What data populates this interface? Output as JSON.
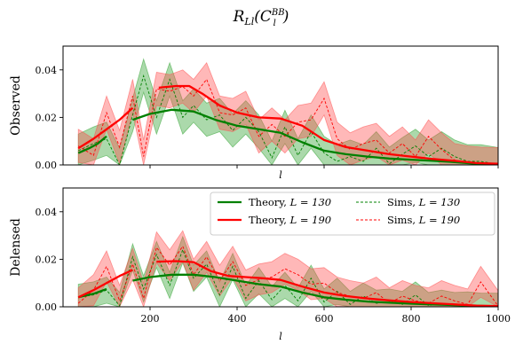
{
  "chart_data": {
    "type": "line",
    "title": "R_{Ll}(C_l^{BB})",
    "title_main": "R",
    "title_sub": "Ll",
    "title_func": "(C",
    "title_l": "l",
    "title_sup": "BB",
    "title_close": ")",
    "xlim": [
      0,
      1000
    ],
    "ylim": [
      0,
      0.05
    ],
    "xticks": [
      "200",
      "400",
      "600",
      "800",
      "1000"
    ],
    "yticks": [
      "0.00",
      "0.02",
      "0.04"
    ],
    "colors": {
      "green": "#008000",
      "red": "#ff0000",
      "green_fill": "#2ca02c",
      "red_fill": "#ff4d4d"
    },
    "legend": {
      "placement": "top-right",
      "entries": [
        {
          "label_pre": "Theory, ",
          "label_math": "L = 130",
          "style": "solid",
          "color": "green"
        },
        {
          "label_pre": "Theory, ",
          "label_math": "L = 190",
          "style": "solid",
          "color": "red"
        },
        {
          "label_pre": "Sims, ",
          "label_math": "L = 130",
          "style": "dashed",
          "color": "green"
        },
        {
          "label_pre": "Sims, ",
          "label_math": "L = 190",
          "style": "dashed",
          "color": "red"
        }
      ]
    },
    "panels": [
      {
        "ylabel": "Observed",
        "xlabel": "l",
        "theory_130": [
          [
            [
              35,
              0.005
            ],
            [
              60,
              0.007
            ],
            [
              80,
              0.009
            ],
            [
              100,
              0.012
            ]
          ],
          [
            [
              160,
              0.019
            ],
            [
              200,
              0.0215
            ],
            [
              250,
              0.0232
            ],
            [
              300,
              0.0225
            ],
            [
              350,
              0.019
            ],
            [
              400,
              0.0165
            ],
            [
              450,
              0.015
            ],
            [
              500,
              0.0135
            ],
            [
              550,
              0.0095
            ],
            [
              600,
              0.006
            ],
            [
              650,
              0.0045
            ],
            [
              700,
              0.0035
            ],
            [
              750,
              0.0027
            ],
            [
              800,
              0.0022
            ],
            [
              850,
              0.0017
            ],
            [
              900,
              0.0012
            ],
            [
              950,
              0.0005
            ],
            [
              1000,
              0.0003
            ]
          ]
        ],
        "theory_190": [
          [
            [
              35,
              0.007
            ],
            [
              70,
              0.011
            ],
            [
              100,
              0.015
            ],
            [
              130,
              0.019
            ],
            [
              160,
              0.024
            ]
          ],
          [
            [
              220,
              0.0325
            ],
            [
              260,
              0.0332
            ],
            [
              290,
              0.0332
            ],
            [
              320,
              0.03
            ],
            [
              360,
              0.025
            ],
            [
              400,
              0.022
            ],
            [
              450,
              0.02
            ],
            [
              500,
              0.0195
            ],
            [
              550,
              0.0165
            ],
            [
              600,
              0.0105
            ],
            [
              650,
              0.0075
            ],
            [
              700,
              0.006
            ],
            [
              750,
              0.0045
            ],
            [
              800,
              0.0035
            ],
            [
              850,
              0.0025
            ],
            [
              900,
              0.0017
            ],
            [
              950,
              0.0008
            ],
            [
              1000,
              0.0005
            ]
          ]
        ],
        "sims_130": {
          "x": [
            35,
            70,
            100,
            130,
            160,
            185,
            215,
            245,
            275,
            300,
            330,
            360,
            390,
            420,
            450,
            480,
            510,
            540,
            570,
            600,
            630,
            660,
            690,
            720,
            750,
            780,
            810,
            840,
            870,
            900,
            930,
            960,
            1000
          ],
          "y": [
            0.006,
            0.009,
            0.011,
            0.0,
            0.021,
            0.0375,
            0.02,
            0.036,
            0.02,
            0.025,
            0.019,
            0.021,
            0.0145,
            0.02,
            0.014,
            0.003,
            0.016,
            0.004,
            0.014,
            0.005,
            0.0015,
            0.0035,
            0.0015,
            0.007,
            0.0005,
            0.0045,
            0.008,
            0.0035,
            0.007,
            0.0035,
            0.0015,
            0.0015,
            0.0003
          ],
          "band": 0.007
        },
        "sims_190": {
          "x": [
            35,
            70,
            100,
            130,
            160,
            185,
            215,
            245,
            275,
            300,
            330,
            360,
            390,
            420,
            450,
            480,
            510,
            540,
            570,
            600,
            630,
            660,
            690,
            720,
            750,
            780,
            810,
            840,
            870,
            900,
            930,
            960,
            1000
          ],
          "y": [
            0.008,
            0.004,
            0.022,
            0.0075,
            0.029,
            0.0035,
            0.032,
            0.031,
            0.033,
            0.029,
            0.036,
            0.022,
            0.021,
            0.024,
            0.012,
            0.017,
            0.012,
            0.018,
            0.019,
            0.028,
            0.011,
            0.0065,
            0.009,
            0.0105,
            0.005,
            0.009,
            0.0035,
            0.012,
            0.0065,
            0.002,
            0.001,
            0.0005,
            0.0003
          ],
          "band": 0.007
        }
      },
      {
        "ylabel": "Delensed",
        "xlabel": "l",
        "theory_130": [
          [
            [
              35,
              0.004
            ],
            [
              70,
              0.0055
            ],
            [
              100,
              0.0075
            ]
          ],
          [
            [
              160,
              0.011
            ],
            [
              200,
              0.0125
            ],
            [
              250,
              0.0135
            ],
            [
              300,
              0.0135
            ],
            [
              350,
              0.0125
            ],
            [
              400,
              0.011
            ],
            [
              450,
              0.0095
            ],
            [
              500,
              0.0085
            ],
            [
              550,
              0.006
            ],
            [
              600,
              0.004
            ],
            [
              650,
              0.003
            ],
            [
              700,
              0.0022
            ],
            [
              750,
              0.0017
            ],
            [
              800,
              0.0013
            ],
            [
              850,
              0.001
            ],
            [
              900,
              0.0007
            ],
            [
              950,
              0.0004
            ],
            [
              1000,
              0.0002
            ]
          ]
        ],
        "theory_190": [
          [
            [
              35,
              0.004
            ],
            [
              70,
              0.007
            ],
            [
              100,
              0.01
            ],
            [
              130,
              0.013
            ],
            [
              160,
              0.0155
            ]
          ],
          [
            [
              215,
              0.019
            ],
            [
              260,
              0.0192
            ],
            [
              300,
              0.0188
            ],
            [
              340,
              0.015
            ],
            [
              380,
              0.013
            ],
            [
              420,
              0.0125
            ],
            [
              460,
              0.012
            ],
            [
              500,
              0.0113
            ],
            [
              550,
              0.0085
            ],
            [
              600,
              0.006
            ],
            [
              650,
              0.0045
            ],
            [
              700,
              0.0035
            ],
            [
              750,
              0.0027
            ],
            [
              800,
              0.002
            ],
            [
              850,
              0.0015
            ],
            [
              900,
              0.001
            ],
            [
              950,
              0.0005
            ],
            [
              1000,
              0.0003
            ]
          ]
        ],
        "sims_130": {
          "x": [
            35,
            70,
            100,
            130,
            160,
            185,
            215,
            245,
            275,
            300,
            330,
            360,
            390,
            420,
            450,
            480,
            510,
            540,
            570,
            600,
            630,
            660,
            690,
            720,
            750,
            780,
            810,
            840,
            870,
            900,
            930,
            960,
            1000
          ],
          "y": [
            0.004,
            0.005,
            0.007,
            0.0005,
            0.021,
            0.0075,
            0.022,
            0.009,
            0.024,
            0.012,
            0.018,
            0.005,
            0.017,
            0.0035,
            0.011,
            0.003,
            0.009,
            0.0025,
            0.012,
            0.002,
            0.0065,
            0.001,
            0.0045,
            0.0015,
            0.002,
            0.001,
            0.005,
            0.0005,
            0.0015,
            0.0005,
            0.0008,
            0.0003,
            0.0002
          ],
          "band": 0.0055
        },
        "sims_190": {
          "x": [
            35,
            70,
            100,
            130,
            160,
            185,
            215,
            245,
            275,
            300,
            330,
            360,
            390,
            420,
            450,
            480,
            510,
            540,
            570,
            600,
            630,
            660,
            690,
            720,
            750,
            780,
            810,
            840,
            870,
            900,
            930,
            960,
            1000
          ],
          "y": [
            0.0015,
            0.007,
            0.017,
            0.0025,
            0.018,
            0.0035,
            0.025,
            0.0175,
            0.0255,
            0.0135,
            0.021,
            0.011,
            0.019,
            0.009,
            0.0115,
            0.0125,
            0.016,
            0.0135,
            0.0095,
            0.01,
            0.006,
            0.0045,
            0.0035,
            0.006,
            0.0015,
            0.0045,
            0.0025,
            0.0015,
            0.0045,
            0.0025,
            0.001,
            0.0105,
            0.0003
          ],
          "band": 0.0065
        }
      }
    ]
  }
}
